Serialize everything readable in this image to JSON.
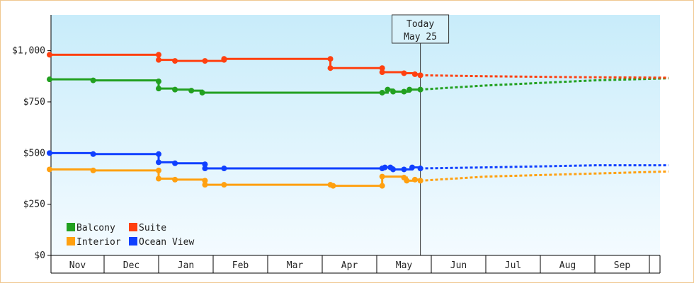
{
  "chart_data": {
    "type": "line",
    "ylim": [
      0,
      1175
    ],
    "yticks": [
      {
        "value": 0,
        "label": "$0"
      },
      {
        "value": 250,
        "label": "$250"
      },
      {
        "value": 500,
        "label": "$500"
      },
      {
        "value": 750,
        "label": "$750"
      },
      {
        "value": 1000,
        "label": "$1,000"
      }
    ],
    "x_categories": [
      "Nov",
      "Dec",
      "Jan",
      "Feb",
      "Mar",
      "Apr",
      "May",
      "Jun",
      "Jul",
      "Aug",
      "Sep",
      ""
    ],
    "today": {
      "label": "Today",
      "date": "May 25",
      "x": 6.8
    },
    "grid": false,
    "legend_position": "bottom-left",
    "colors": {
      "Balcony": "#22a020",
      "Suite": "#ff4010",
      "Interior": "#ffa010",
      "Ocean View": "#1040ff"
    },
    "series": [
      {
        "name": "Balcony",
        "history": [
          [
            0.0,
            860
          ],
          [
            0.8,
            855
          ],
          [
            2.0,
            850
          ],
          [
            2.0,
            815
          ],
          [
            2.3,
            810
          ],
          [
            2.6,
            805
          ],
          [
            2.8,
            795
          ],
          [
            6.1,
            795
          ],
          [
            6.2,
            810
          ],
          [
            6.3,
            800
          ],
          [
            6.5,
            800
          ],
          [
            6.6,
            810
          ],
          [
            6.8,
            810
          ]
        ],
        "forecast": [
          [
            6.8,
            810
          ],
          [
            8.0,
            830
          ],
          [
            10.0,
            855
          ],
          [
            11.35,
            865
          ]
        ]
      },
      {
        "name": "Suite",
        "history": [
          [
            0.0,
            980
          ],
          [
            2.0,
            980
          ],
          [
            2.0,
            955
          ],
          [
            2.3,
            950
          ],
          [
            2.85,
            950
          ],
          [
            3.2,
            955
          ],
          [
            3.2,
            960
          ],
          [
            5.15,
            960
          ],
          [
            5.15,
            915
          ],
          [
            6.1,
            915
          ],
          [
            6.1,
            895
          ],
          [
            6.5,
            890
          ],
          [
            6.7,
            885
          ],
          [
            6.8,
            880
          ]
        ],
        "forecast": [
          [
            6.8,
            880
          ],
          [
            8.0,
            875
          ],
          [
            10.0,
            870
          ],
          [
            11.35,
            868
          ]
        ]
      },
      {
        "name": "Interior",
        "history": [
          [
            0.0,
            420
          ],
          [
            0.8,
            415
          ],
          [
            2.0,
            415
          ],
          [
            2.0,
            375
          ],
          [
            2.3,
            370
          ],
          [
            2.85,
            365
          ],
          [
            2.85,
            345
          ],
          [
            3.2,
            345
          ],
          [
            5.15,
            345
          ],
          [
            5.2,
            340
          ],
          [
            6.1,
            340
          ],
          [
            6.1,
            385
          ],
          [
            6.5,
            380
          ],
          [
            6.55,
            365
          ],
          [
            6.7,
            370
          ],
          [
            6.8,
            365
          ]
        ],
        "forecast": [
          [
            6.8,
            365
          ],
          [
            8.0,
            385
          ],
          [
            10.0,
            400
          ],
          [
            11.35,
            410
          ]
        ]
      },
      {
        "name": "Ocean View",
        "history": [
          [
            0.0,
            500
          ],
          [
            0.8,
            495
          ],
          [
            2.0,
            495
          ],
          [
            2.0,
            455
          ],
          [
            2.3,
            450
          ],
          [
            2.85,
            445
          ],
          [
            2.85,
            425
          ],
          [
            3.2,
            425
          ],
          [
            6.1,
            425
          ],
          [
            6.15,
            430
          ],
          [
            6.25,
            430
          ],
          [
            6.3,
            420
          ],
          [
            6.5,
            420
          ],
          [
            6.65,
            430
          ],
          [
            6.8,
            425
          ]
        ],
        "forecast": [
          [
            6.8,
            425
          ],
          [
            8.0,
            430
          ],
          [
            10.0,
            440
          ],
          [
            11.35,
            440
          ]
        ]
      }
    ]
  }
}
